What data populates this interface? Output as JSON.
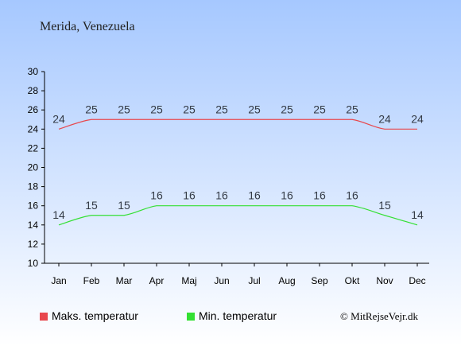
{
  "title": "Merida, Venezuela",
  "copyright": "© MitRejseVejr.dk",
  "colors": {
    "background_top": "#a6c8ff",
    "background_bottom": "#ffffff",
    "max_series": "#e8474d",
    "min_series": "#33e033",
    "data_label": "#333a45"
  },
  "chart_data": {
    "type": "line",
    "categories": [
      "Jan",
      "Feb",
      "Mar",
      "Apr",
      "Maj",
      "Jun",
      "Jul",
      "Aug",
      "Sep",
      "Okt",
      "Nov",
      "Dec"
    ],
    "series": [
      {
        "name": "Maks. temperatur",
        "values": [
          24,
          25,
          25,
          25,
          25,
          25,
          25,
          25,
          25,
          25,
          24,
          24
        ]
      },
      {
        "name": "Min. temperatur",
        "values": [
          14,
          15,
          15,
          16,
          16,
          16,
          16,
          16,
          16,
          16,
          15,
          14
        ]
      }
    ],
    "ylim": [
      10,
      30
    ],
    "yticks": [
      10,
      12,
      14,
      16,
      18,
      20,
      22,
      24,
      26,
      28,
      30
    ],
    "grid": false,
    "legend_placement": "bottom-left"
  }
}
